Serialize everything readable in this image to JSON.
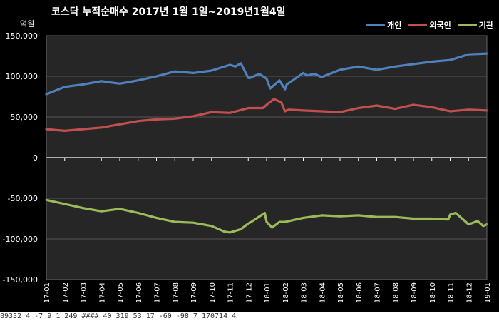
{
  "chart_data": {
    "type": "line",
    "title": "코스닥 누적순매수 2017년 1월 1일~2019년1월4일",
    "unit_label": "억원",
    "xlabel": "",
    "ylabel": "",
    "ylim": [
      -150000,
      150000
    ],
    "y_ticks": [
      150000,
      100000,
      50000,
      0,
      -50000,
      -100000,
      -150000
    ],
    "y_tick_labels": [
      "150,000",
      "100,000",
      "50,000",
      "0",
      "-50,000",
      "-100,000",
      "-150,000"
    ],
    "x_tick_labels": [
      "17-01",
      "17-02",
      "17-03",
      "17-04",
      "17-05",
      "17-06",
      "17-07",
      "17-08",
      "17-09",
      "17-10",
      "17-11",
      "17-12",
      "18-01",
      "18-02",
      "18-03",
      "18-04",
      "18-05",
      "18-06",
      "18-07",
      "18-08",
      "18-09",
      "18-10",
      "18-11",
      "18-12",
      "19-01"
    ],
    "grid": true,
    "legend_position": "top-right",
    "series": [
      {
        "name": "개인",
        "color": "#4f81bd",
        "values": [
          78000,
          87000,
          90000,
          94000,
          91000,
          95000,
          100000,
          106000,
          104000,
          107000,
          114000,
          98000,
          97000,
          84000,
          104000,
          99000,
          108000,
          112000,
          108000,
          112000,
          115000,
          118000,
          120000,
          127000,
          128000
        ],
        "notes_x": "",
        "extra_x": [
          10.3,
          10.6,
          11.1,
          11.6,
          12.2,
          12.7,
          13.1,
          14.2,
          14.6
        ],
        "extra_y": [
          112000,
          116000,
          98000,
          103000,
          85000,
          95000,
          90000,
          101000,
          103000
        ]
      },
      {
        "name": "외국인",
        "color": "#c0504d",
        "values": [
          35000,
          33000,
          35000,
          37000,
          41000,
          45000,
          47000,
          48000,
          51000,
          56000,
          55000,
          61000,
          65000,
          57000,
          58000,
          57000,
          56000,
          61000,
          64000,
          60000,
          65000,
          62000,
          57000,
          59000,
          58000
        ],
        "extra_x": [
          11.8,
          12.4,
          12.8,
          13.2
        ],
        "extra_y": [
          61000,
          72000,
          68000,
          59000
        ],
        "notes_x": ""
      },
      {
        "name": "기관",
        "color": "#9bbb59",
        "values": [
          -52000,
          -57000,
          -62000,
          -66000,
          -63000,
          -68000,
          -74000,
          -79000,
          -80000,
          -84000,
          -92000,
          -81000,
          -79000,
          -79000,
          -74000,
          -71000,
          -72000,
          -71000,
          -73000,
          -73000,
          -75000,
          -75000,
          -70000,
          -82000,
          -82000
        ],
        "extra_x": [
          9.7,
          10.6,
          11.1,
          11.9,
          12.3,
          12.7,
          13.4,
          21.9,
          22.3,
          23.5,
          23.8
        ],
        "extra_y": [
          -91000,
          -88000,
          -80000,
          -68000,
          -86000,
          -79000,
          -77000,
          -76000,
          -68000,
          -78000,
          -84000
        ],
        "notes_x": ""
      }
    ]
  },
  "bottom_strip_text": "89332  4  -7 9 1 249 ####     40    319      53     17     -60     -98       7                                              170714   4"
}
